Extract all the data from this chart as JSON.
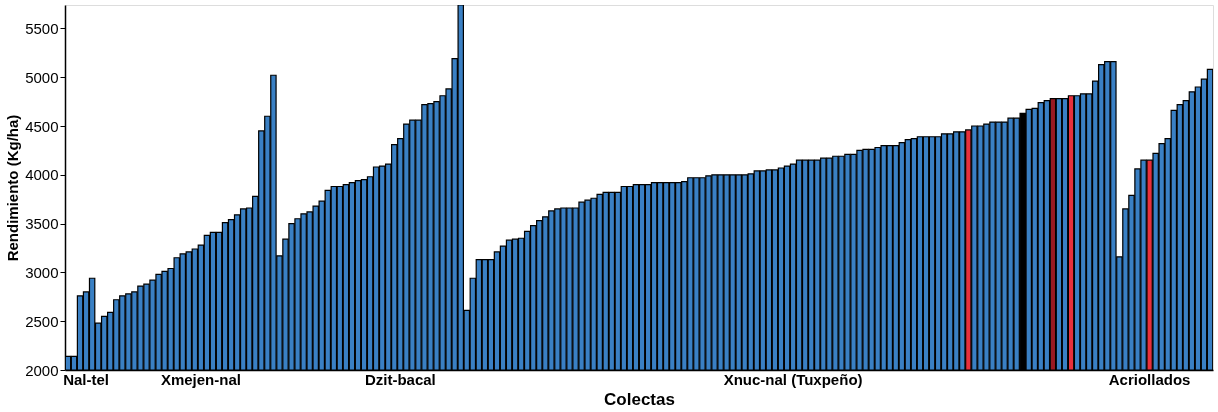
{
  "chart_data": {
    "type": "bar",
    "xlabel": "Colectas",
    "ylabel": "Rendimiento (Kg/ha)",
    "categories": [
      null,
      null,
      null,
      "Nal-tel",
      null,
      null,
      null,
      null,
      null,
      null,
      null,
      null,
      null,
      null,
      null,
      null,
      null,
      null,
      null,
      null,
      null,
      null,
      "Xmejen-nal",
      null,
      null,
      null,
      null,
      null,
      null,
      null,
      null,
      null,
      null,
      null,
      null,
      null,
      null,
      null,
      null,
      null,
      null,
      null,
      null,
      null,
      null,
      null,
      null,
      null,
      null,
      null,
      null,
      null,
      null,
      null,
      null,
      "Dzit-bacal",
      null,
      null,
      null,
      null,
      null,
      null,
      null,
      null,
      null,
      null,
      null,
      null,
      null,
      null,
      null,
      null,
      null,
      null,
      null,
      null,
      null,
      null,
      null,
      null,
      null,
      null,
      null,
      null,
      null,
      null,
      null,
      null,
      null,
      null,
      null,
      null,
      null,
      null,
      null,
      null,
      null,
      null,
      null,
      null,
      null,
      null,
      null,
      null,
      null,
      null,
      null,
      null,
      null,
      null,
      null,
      null,
      null,
      null,
      null,
      null,
      null,
      null,
      null,
      null,
      "Xnuc-nal (Tuxpeño)",
      null,
      null,
      null,
      null,
      null,
      null,
      null,
      null,
      null,
      null,
      null,
      null,
      null,
      null,
      null,
      null,
      null,
      null,
      null,
      null,
      null,
      null,
      null,
      null,
      null,
      null,
      null,
      null,
      null,
      null,
      null,
      null,
      null,
      null,
      null,
      null,
      null,
      null,
      null,
      null,
      null,
      null,
      null,
      null,
      null,
      null,
      null,
      null,
      null,
      null,
      null,
      null,
      null,
      null,
      null,
      null,
      null,
      null,
      "Acriollados",
      null,
      null,
      null,
      null,
      null,
      null,
      null,
      null,
      null,
      null
    ],
    "values": [
      2140,
      2140,
      2760,
      2800,
      2940,
      2480,
      2550,
      2590,
      2720,
      2760,
      2780,
      2800,
      2860,
      2880,
      2920,
      2980,
      3010,
      3040,
      3150,
      3190,
      3210,
      3240,
      3280,
      3380,
      3410,
      3410,
      3510,
      3540,
      3590,
      3650,
      3660,
      3780,
      4450,
      4600,
      5020,
      3170,
      3340,
      3500,
      3550,
      3600,
      3620,
      3680,
      3730,
      3840,
      3880,
      3880,
      3900,
      3920,
      3940,
      3950,
      3980,
      4080,
      4090,
      4110,
      4310,
      4370,
      4520,
      4560,
      4560,
      4720,
      4730,
      4750,
      4810,
      4880,
      5190,
      5740,
      2610,
      2940,
      3130,
      3130,
      3130,
      3210,
      3270,
      3330,
      3340,
      3350,
      3420,
      3480,
      3530,
      3570,
      3630,
      3650,
      3660,
      3660,
      3660,
      3720,
      3740,
      3760,
      3800,
      3820,
      3820,
      3820,
      3880,
      3880,
      3900,
      3900,
      3900,
      3920,
      3920,
      3920,
      3920,
      3920,
      3930,
      3970,
      3970,
      3970,
      3990,
      4000,
      4000,
      4000,
      4000,
      4000,
      4000,
      4010,
      4040,
      4040,
      4050,
      4050,
      4070,
      4090,
      4110,
      4150,
      4150,
      4150,
      4150,
      4170,
      4170,
      4190,
      4190,
      4210,
      4210,
      4250,
      4260,
      4260,
      4280,
      4300,
      4300,
      4300,
      4330,
      4360,
      4370,
      4390,
      4390,
      4390,
      4390,
      4420,
      4420,
      4440,
      4440,
      4460,
      4500,
      4500,
      4520,
      4540,
      4540,
      4540,
      4580,
      4580,
      4630,
      4670,
      4680,
      4740,
      4760,
      4780,
      4780,
      4780,
      4810,
      4810,
      4830,
      4830,
      4960,
      5130,
      5160,
      5160,
      3160,
      3650,
      3790,
      4060,
      4150,
      4150,
      4220,
      4320,
      4370,
      4660,
      4720,
      4760,
      4850,
      4900,
      4980,
      5080
    ],
    "colors": [
      "#3a80c4",
      "#3a80c4",
      "#3a80c4",
      "#3a80c4",
      "#3a80c4",
      "#3a80c4",
      "#3a80c4",
      "#3a80c4",
      "#3a80c4",
      "#3a80c4",
      "#3a80c4",
      "#3a80c4",
      "#3a80c4",
      "#3a80c4",
      "#3a80c4",
      "#3a80c4",
      "#3a80c4",
      "#3a80c4",
      "#3a80c4",
      "#3a80c4",
      "#3a80c4",
      "#3a80c4",
      "#3a80c4",
      "#3a80c4",
      "#3a80c4",
      "#3a80c4",
      "#3a80c4",
      "#3a80c4",
      "#3a80c4",
      "#3a80c4",
      "#3a80c4",
      "#3a80c4",
      "#3a80c4",
      "#3a80c4",
      "#3a80c4",
      "#3a80c4",
      "#3a80c4",
      "#3a80c4",
      "#3a80c4",
      "#3a80c4",
      "#3a80c4",
      "#3a80c4",
      "#3a80c4",
      "#3a80c4",
      "#3a80c4",
      "#3a80c4",
      "#3a80c4",
      "#3a80c4",
      "#3a80c4",
      "#3a80c4",
      "#3a80c4",
      "#3a80c4",
      "#3a80c4",
      "#3a80c4",
      "#3a80c4",
      "#3a80c4",
      "#3a80c4",
      "#3a80c4",
      "#3a80c4",
      "#3a80c4",
      "#3a80c4",
      "#3a80c4",
      "#3a80c4",
      "#3a80c4",
      "#3a80c4",
      "#3a80c4",
      "#3a80c4",
      "#3a80c4",
      "#3a80c4",
      "#3a80c4",
      "#3a80c4",
      "#3a80c4",
      "#3a80c4",
      "#3a80c4",
      "#3a80c4",
      "#3a80c4",
      "#3a80c4",
      "#3a80c4",
      "#3a80c4",
      "#3a80c4",
      "#3a80c4",
      "#3a80c4",
      "#3a80c4",
      "#3a80c4",
      "#3a80c4",
      "#3a80c4",
      "#3a80c4",
      "#3a80c4",
      "#3a80c4",
      "#3a80c4",
      "#3a80c4",
      "#3a80c4",
      "#3a80c4",
      "#3a80c4",
      "#3a80c4",
      "#3a80c4",
      "#3a80c4",
      "#3a80c4",
      "#3a80c4",
      "#3a80c4",
      "#3a80c4",
      "#3a80c4",
      "#3a80c4",
      "#3a80c4",
      "#3a80c4",
      "#3a80c4",
      "#3a80c4",
      "#3a80c4",
      "#3a80c4",
      "#3a80c4",
      "#3a80c4",
      "#3a80c4",
      "#3a80c4",
      "#3a80c4",
      "#3a80c4",
      "#3a80c4",
      "#3a80c4",
      "#3a80c4",
      "#3a80c4",
      "#3a80c4",
      "#3a80c4",
      "#3a80c4",
      "#3a80c4",
      "#3a80c4",
      "#3a80c4",
      "#3a80c4",
      "#3a80c4",
      "#3a80c4",
      "#3a80c4",
      "#3a80c4",
      "#3a80c4",
      "#3a80c4",
      "#3a80c4",
      "#3a80c4",
      "#3a80c4",
      "#3a80c4",
      "#3a80c4",
      "#3a80c4",
      "#3a80c4",
      "#3a80c4",
      "#3a80c4",
      "#3a80c4",
      "#3a80c4",
      "#3a80c4",
      "#3a80c4",
      "#3a80c4",
      "#3a80c4",
      "#3a80c4",
      "#3a80c4",
      "#e8303c",
      "#3a80c4",
      "#3a80c4",
      "#3a80c4",
      "#3a80c4",
      "#3a80c4",
      "#3a80c4",
      "#3a80c4",
      "#3a80c4",
      "#000000",
      "#3a80c4",
      "#3a80c4",
      "#3a80c4",
      "#3a80c4",
      "#9a1a22",
      "#3a80c4",
      "#3a80c4",
      "#e8303c",
      "#3a80c4",
      "#3a80c4",
      "#3a80c4",
      "#3a80c4",
      "#3a80c4",
      "#3a80c4",
      "#3a80c4",
      "#3a80c4",
      "#3a80c4",
      "#3a80c4",
      "#3a80c4",
      "#3a80c4",
      "#e8303c",
      "#3a80c4",
      "#3a80c4",
      "#3a80c4",
      "#3a80c4",
      "#3a80c4",
      "#3a80c4",
      "#3a80c4",
      "#3a80c4",
      "#3a80c4",
      "#3a80c4"
    ],
    "ylim": [
      2000,
      5740
    ],
    "yticks": [
      2000,
      2500,
      3000,
      3500,
      4000,
      4500,
      5000,
      5500
    ],
    "grid": false
  }
}
